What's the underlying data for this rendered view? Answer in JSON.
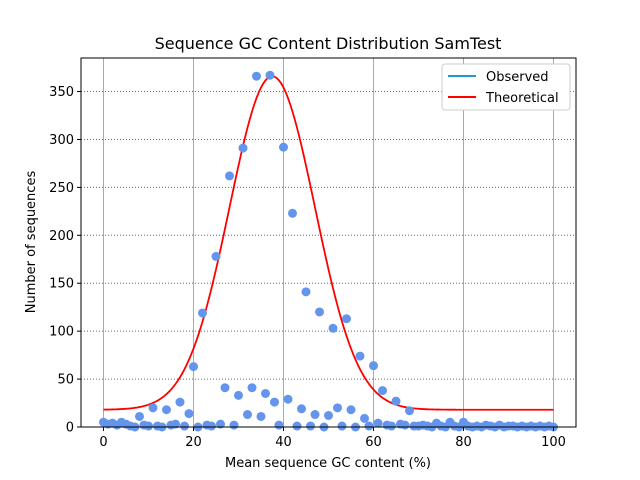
{
  "chart_data": {
    "type": "scatter",
    "title": "Sequence GC Content Distribution SamTest",
    "xlabel": "Mean sequence GC content (%)",
    "ylabel": "Number of sequences",
    "xlim": [
      -5,
      105
    ],
    "ylim": [
      0,
      385
    ],
    "xticks": [
      0,
      20,
      40,
      60,
      80,
      100
    ],
    "yticks": [
      0,
      50,
      100,
      150,
      200,
      250,
      300,
      350
    ],
    "grid": true,
    "legend_position": "top-right",
    "legend": [
      "Observed",
      "Theoretical"
    ],
    "colors": {
      "observed_line": "#1f9bd0",
      "observed_points": "#6495ED",
      "theoretical": "#ff0000"
    },
    "series": [
      {
        "name": "Observed",
        "x": [
          0,
          1,
          2,
          3,
          4,
          5,
          6,
          7,
          8,
          9,
          10,
          11,
          12,
          13,
          14,
          15,
          16,
          17,
          18,
          19,
          20,
          21,
          22,
          23,
          24,
          25,
          26,
          27,
          28,
          29,
          30,
          31,
          32,
          33,
          34,
          35,
          36,
          37,
          38,
          39,
          40,
          41,
          42,
          43,
          44,
          45,
          46,
          47,
          48,
          49,
          50,
          51,
          52,
          53,
          54,
          55,
          56,
          57,
          58,
          59,
          60,
          61,
          62,
          63,
          64,
          65,
          66,
          67,
          68,
          69,
          70,
          71,
          72,
          73,
          74,
          75,
          76,
          77,
          78,
          79,
          80,
          81,
          82,
          83,
          84,
          85,
          86,
          87,
          88,
          89,
          90,
          91,
          92,
          93,
          94,
          95,
          96,
          97,
          98,
          99,
          100
        ],
        "y": [
          5,
          3,
          4,
          2,
          5,
          3,
          1,
          0,
          11,
          2,
          1,
          20,
          1,
          0,
          18,
          2,
          3,
          26,
          1,
          14,
          63,
          0,
          119,
          2,
          1,
          178,
          3,
          41,
          262,
          2,
          33,
          291,
          13,
          41,
          366,
          11,
          35,
          367,
          26,
          2,
          292,
          29,
          223,
          1,
          19,
          141,
          1,
          13,
          120,
          0,
          12,
          103,
          20,
          1,
          113,
          18,
          0,
          74,
          9,
          1,
          64,
          4,
          38,
          2,
          1,
          27,
          3,
          2,
          17,
          1,
          1,
          2,
          1,
          0,
          4,
          1,
          0,
          5,
          1,
          0,
          5,
          1,
          0,
          1,
          0,
          2,
          1,
          0,
          2,
          0,
          1,
          1,
          0,
          1,
          0,
          1,
          0,
          1,
          0,
          1,
          0
        ]
      },
      {
        "name": "Theoretical",
        "baseline": 18,
        "peak_height": 348,
        "mean": 37.5,
        "sd": 9.5
      }
    ]
  }
}
